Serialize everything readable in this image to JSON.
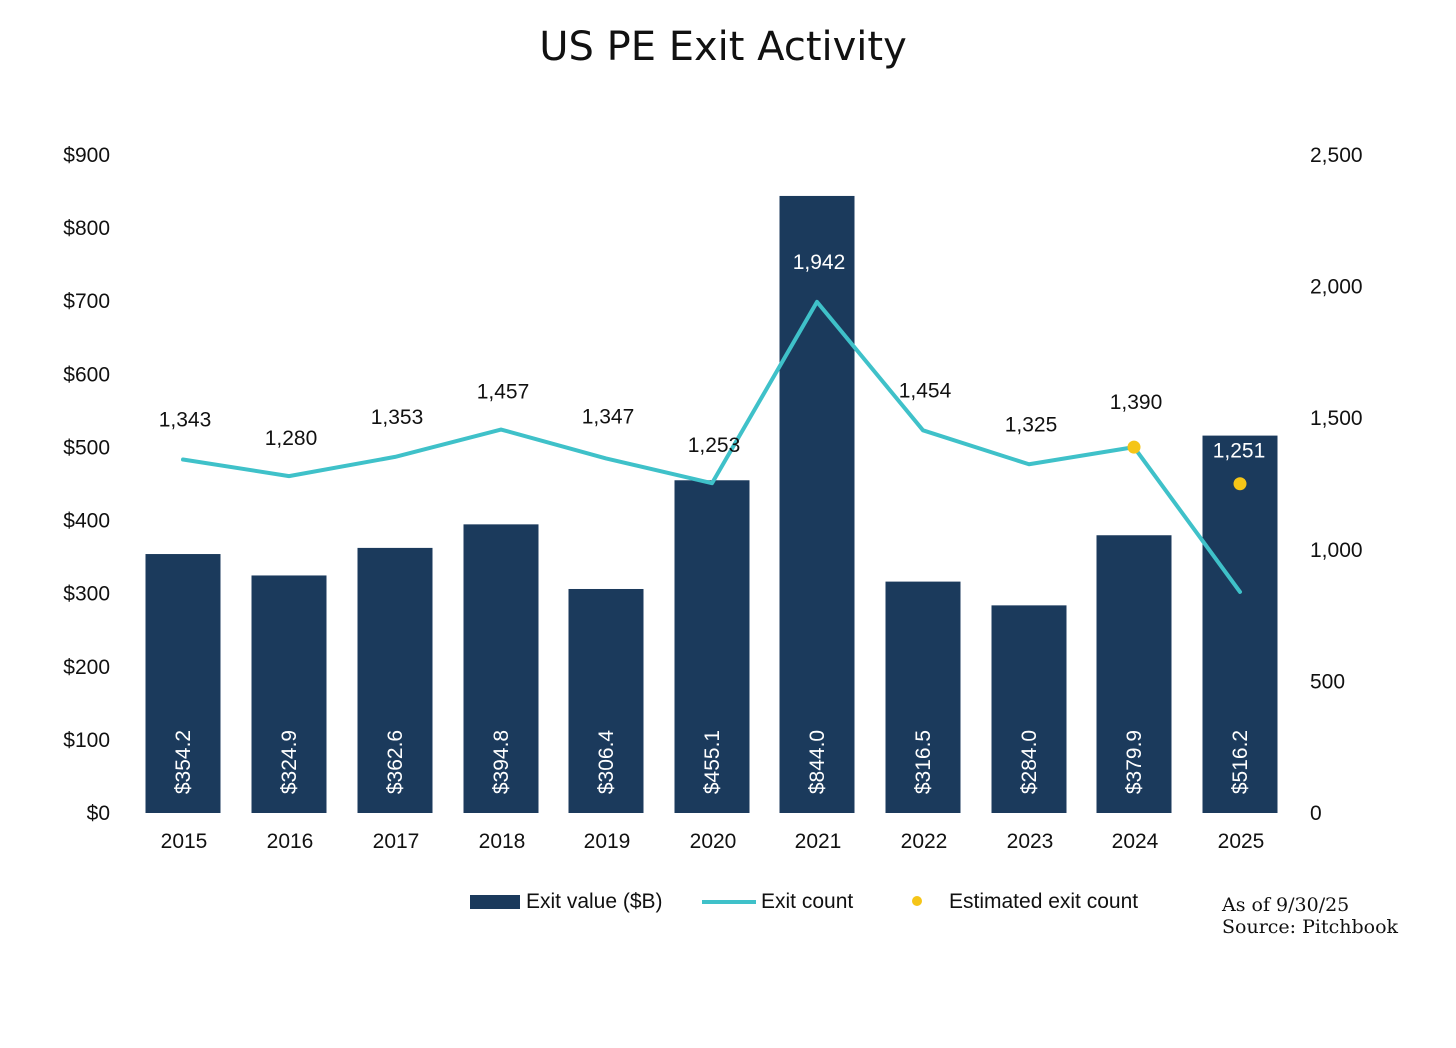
{
  "chart_data": {
    "type": "bar",
    "title": "US PE Exit Activity",
    "categories": [
      "2015",
      "2016",
      "2017",
      "2018",
      "2019",
      "2020",
      "2021",
      "2022",
      "2023",
      "2024",
      "2025"
    ],
    "series": [
      {
        "name": "Exit value ($B)",
        "type": "bar",
        "axis": "left",
        "color": "#1b3a5c",
        "values": [
          354.2,
          324.9,
          362.6,
          394.8,
          306.4,
          455.1,
          844.0,
          316.5,
          284.0,
          379.9,
          516.2
        ],
        "labels": [
          "$354.2",
          "$324.9",
          "$362.6",
          "$394.8",
          "$306.4",
          "$455.1",
          "$844.0",
          "$316.5",
          "$284.0",
          "$379.9",
          "$516.2"
        ]
      },
      {
        "name": "Exit count",
        "type": "line",
        "axis": "right",
        "color": "#3fc1c9",
        "values": [
          1343,
          1280,
          1353,
          1457,
          1347,
          1253,
          1942,
          1454,
          1325,
          1390,
          840
        ],
        "labels": [
          "1,343",
          "1,280",
          "1,353",
          "1,457",
          "1,347",
          "1,253",
          "1,942",
          "1,454",
          "1,325",
          "1,390",
          ""
        ]
      },
      {
        "name": "Estimated exit count",
        "type": "scatter",
        "axis": "right",
        "color": "#f5c518",
        "points": [
          {
            "x": "2024",
            "y": 1390
          },
          {
            "x": "2025",
            "y": 1251,
            "label": "1,251"
          }
        ]
      }
    ],
    "y_left": {
      "min": 0,
      "max": 900,
      "step": 100,
      "ticks": [
        "$0",
        "$100",
        "$200",
        "$300",
        "$400",
        "$500",
        "$600",
        "$700",
        "$800",
        "$900"
      ]
    },
    "y_right": {
      "min": 0,
      "max": 2500,
      "step": 500,
      "ticks": [
        "0",
        "500",
        "1,000",
        "1,500",
        "2,000",
        "2,500"
      ]
    },
    "legend": {
      "position": "bottom",
      "items": [
        "Exit value ($B)",
        "Exit count",
        "Estimated exit count"
      ]
    },
    "grid": false
  },
  "notes": {
    "as_of": "As of 9/30/25",
    "source": "Source: Pitchbook"
  }
}
